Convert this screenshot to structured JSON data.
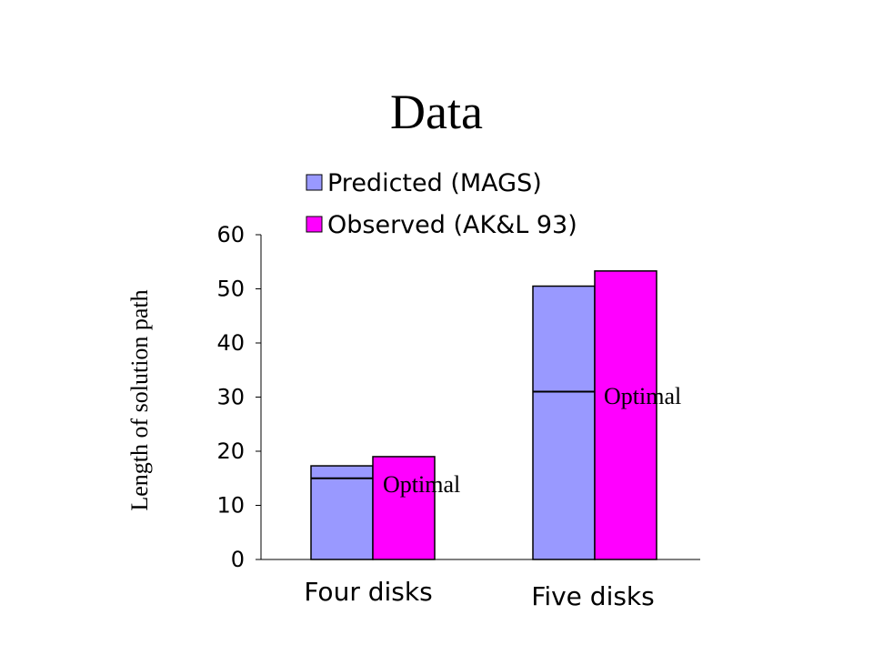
{
  "title": "Data",
  "chart_data": {
    "type": "bar",
    "categories": [
      "Four disks",
      "Five disks"
    ],
    "series": [
      {
        "name": "Predicted (MAGS)",
        "values": [
          17.3,
          50.5
        ],
        "color": "#9999ff"
      },
      {
        "name": "Observed (AK&L 93)",
        "values": [
          19,
          53.3
        ],
        "color": "#ff00ff"
      }
    ],
    "optimal": {
      "label": "Optimal",
      "values": [
        15,
        31
      ]
    },
    "ylabel": "Length of solution path",
    "ylim": [
      0,
      60
    ],
    "yticks": [
      0,
      10,
      20,
      30,
      40,
      50,
      60
    ],
    "grid": false,
    "legend_position": "top"
  }
}
